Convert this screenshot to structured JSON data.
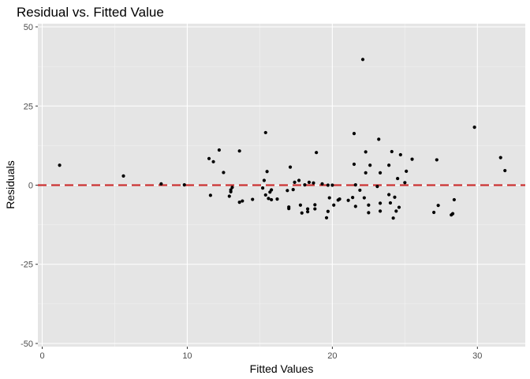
{
  "chart_data": {
    "type": "scatter",
    "title": "Residual vs. Fitted Value",
    "xlabel": "Fitted Values",
    "ylabel": "Residuals",
    "xlim": [
      -0.3,
      33.3
    ],
    "ylim": [
      -51,
      51
    ],
    "x_ticks": [
      0,
      10,
      20,
      30
    ],
    "y_ticks": [
      -50,
      -25,
      0,
      25,
      50
    ],
    "x_tick_labels": [
      "0",
      "10",
      "20",
      "30"
    ],
    "y_tick_labels": [
      "-50",
      "-25",
      "0",
      "25",
      "50"
    ],
    "grid": true,
    "reference_line": {
      "y": 0,
      "style": "dashed",
      "color": "#cc3333"
    },
    "colors": {
      "panel": "#e5e5e5",
      "grid_major": "#ffffff",
      "point": "#000000",
      "reference": "#cc3333"
    },
    "points": [
      [
        1.2,
        6.3
      ],
      [
        5.6,
        2.9
      ],
      [
        8.2,
        0.4
      ],
      [
        9.8,
        0.1
      ],
      [
        11.5,
        8.4
      ],
      [
        11.6,
        -3.2
      ],
      [
        11.8,
        7.4
      ],
      [
        12.2,
        11.1
      ],
      [
        12.5,
        4.0
      ],
      [
        12.9,
        -3.5
      ],
      [
        13.0,
        -2.1
      ],
      [
        13.0,
        -1.5
      ],
      [
        13.1,
        -0.7
      ],
      [
        13.6,
        10.8
      ],
      [
        13.6,
        -5.4
      ],
      [
        13.8,
        -5.0
      ],
      [
        14.5,
        -4.5
      ],
      [
        15.2,
        -0.9
      ],
      [
        15.3,
        1.5
      ],
      [
        15.4,
        16.6
      ],
      [
        15.4,
        -3.1
      ],
      [
        15.5,
        4.3
      ],
      [
        15.6,
        -4.2
      ],
      [
        15.7,
        -2.2
      ],
      [
        15.8,
        -4.6
      ],
      [
        15.8,
        -1.5
      ],
      [
        16.2,
        -4.4
      ],
      [
        16.9,
        -1.7
      ],
      [
        17.0,
        -6.9
      ],
      [
        17.0,
        -7.4
      ],
      [
        17.1,
        5.7
      ],
      [
        17.3,
        -1.4
      ],
      [
        17.4,
        0.9
      ],
      [
        17.7,
        1.5
      ],
      [
        17.8,
        -6.3
      ],
      [
        17.9,
        -8.8
      ],
      [
        18.1,
        0.1
      ],
      [
        18.3,
        -8.4
      ],
      [
        18.3,
        -7.5
      ],
      [
        18.4,
        0.9
      ],
      [
        18.7,
        0.7
      ],
      [
        18.8,
        -6.2
      ],
      [
        18.8,
        -7.5
      ],
      [
        18.9,
        10.3
      ],
      [
        19.3,
        0.4
      ],
      [
        19.6,
        -10.3
      ],
      [
        19.7,
        -8.3
      ],
      [
        19.7,
        0.0
      ],
      [
        19.8,
        -4.0
      ],
      [
        20.0,
        0.0
      ],
      [
        20.1,
        -6.3
      ],
      [
        20.4,
        -4.7
      ],
      [
        20.5,
        -4.4
      ],
      [
        21.1,
        -4.8
      ],
      [
        21.4,
        -3.9
      ],
      [
        21.5,
        16.3
      ],
      [
        21.5,
        6.6
      ],
      [
        21.6,
        0.1
      ],
      [
        21.6,
        -6.7
      ],
      [
        21.9,
        -1.6
      ],
      [
        22.1,
        39.7
      ],
      [
        22.2,
        -4.0
      ],
      [
        22.3,
        10.5
      ],
      [
        22.3,
        3.9
      ],
      [
        22.5,
        -6.3
      ],
      [
        22.5,
        -8.7
      ],
      [
        22.6,
        6.3
      ],
      [
        23.1,
        -0.4
      ],
      [
        23.2,
        14.5
      ],
      [
        23.3,
        3.9
      ],
      [
        23.3,
        -5.7
      ],
      [
        23.3,
        -8.2
      ],
      [
        23.9,
        6.3
      ],
      [
        23.9,
        -3.0
      ],
      [
        24.0,
        -5.6
      ],
      [
        24.1,
        10.6
      ],
      [
        24.2,
        -10.4
      ],
      [
        24.3,
        -3.8
      ],
      [
        24.4,
        -8.2
      ],
      [
        24.5,
        2.1
      ],
      [
        24.6,
        -7.0
      ],
      [
        24.7,
        9.6
      ],
      [
        25.0,
        0.8
      ],
      [
        25.1,
        4.4
      ],
      [
        25.5,
        8.2
      ],
      [
        27.0,
        -8.6
      ],
      [
        27.2,
        8.0
      ],
      [
        27.3,
        -6.4
      ],
      [
        28.2,
        -9.4
      ],
      [
        28.3,
        -9.0
      ],
      [
        28.4,
        -4.6
      ],
      [
        29.8,
        18.3
      ],
      [
        31.6,
        8.7
      ],
      [
        31.9,
        4.6
      ]
    ]
  }
}
